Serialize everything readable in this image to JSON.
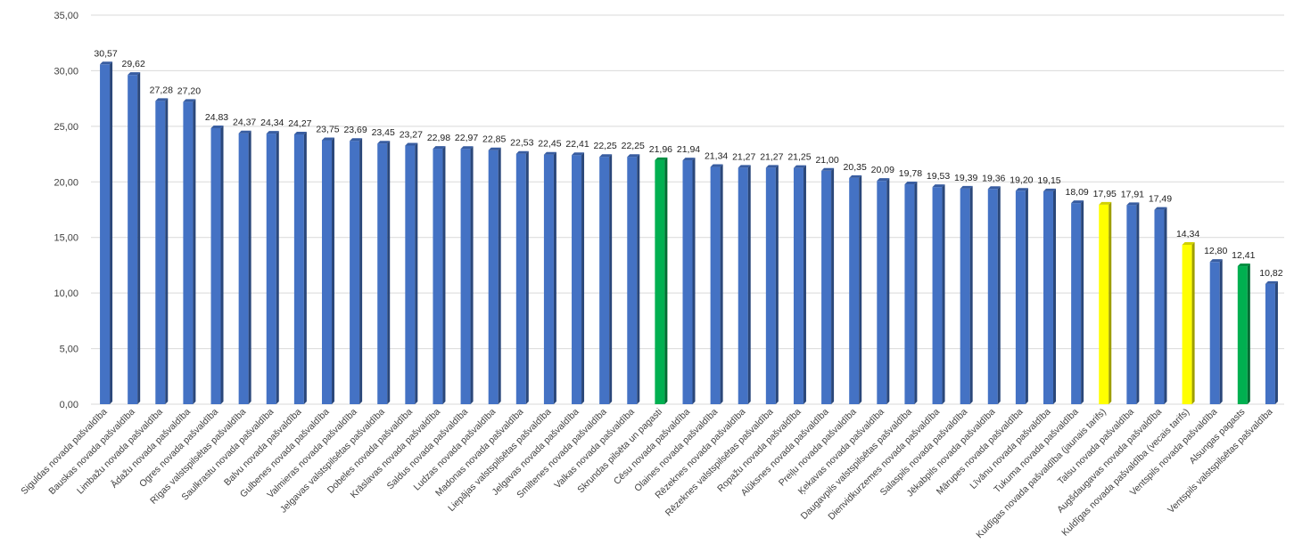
{
  "chart_data": {
    "type": "bar",
    "title": "",
    "xlabel": "",
    "ylabel": "",
    "ylim": [
      0,
      35
    ],
    "yticks": [
      "0,00",
      "5,00",
      "10,00",
      "15,00",
      "20,00",
      "25,00",
      "30,00",
      "35,00"
    ],
    "grid": true,
    "legend": "none",
    "colors": {
      "default": "#4472c4",
      "green": "#00b050",
      "yellow": "#ffff00"
    },
    "categories": [
      "Siguldas novada pašvaldība",
      "Bauskas novada pašvaldība",
      "Limbažu novada pašvaldība",
      "Ādažu novada pašvaldība",
      "Ogres novada pašvaldība",
      "Rīgas valstspilsētas pašvaldība",
      "Saulkrastu novada pašvaldība",
      "Balvu novada pašvaldība",
      "Gulbenes novada pašvaldība",
      "Valmieras novada pašvaldība",
      "Jelgavas valstspilsētas pašvaldība",
      "Dobeles novada pašvaldība",
      "Krāslavas novada pašvaldība",
      "Saldus novada pašvaldība",
      "Ludzas novada pašvaldība",
      "Madonas novada pašvaldība",
      "Liepājas valstspilsētas pašvaldība",
      "Jelgavas novada pašvaldība",
      "Smiltenes novada pašvaldība",
      "Valkas novada pašvaldība",
      "Skrundas pilsēta un pagasti",
      "Cēsu novada pašvaldība",
      "Olaines novada pašvaldība",
      "Rēzeknes novada pašvaldība",
      "Rēzeknes valstspilsētas pašvaldība",
      "Ropažu novada pašvaldība",
      "Alūksnes novada pašvaldība",
      "Preiļu novada pašvaldība",
      "Ķekavas novada pašvaldība",
      "Daugavpils valstspilsētas pašvaldība",
      "Dienvidkurzemes novada pašvaldība",
      "Salaspils novada pašvaldība",
      "Jēkabpils novada pašvaldība",
      "Mārupes novada pašvaldība",
      "Līvānu novada pašvaldība",
      "Tukuma novada pašvaldība",
      "Kuldīgas novada pašvaldība (jaunais tarifs)",
      "Talsu novada pašvaldība",
      "Augšdaugavas novada pašvaldība",
      "Kuldīgas novada pašvaldība (vecais tarifs)",
      "Ventspils novada pašvaldība",
      "Alsungas pagasts",
      "Ventspils valstspilsētas pašvaldība"
    ],
    "values": [
      30.57,
      29.62,
      27.28,
      27.2,
      24.83,
      24.37,
      24.34,
      24.27,
      23.75,
      23.69,
      23.45,
      23.27,
      22.98,
      22.97,
      22.85,
      22.53,
      22.45,
      22.41,
      22.25,
      22.25,
      21.96,
      21.94,
      21.34,
      21.27,
      21.27,
      21.25,
      21.0,
      20.35,
      20.09,
      19.78,
      19.53,
      19.39,
      19.36,
      19.2,
      19.15,
      18.09,
      17.95,
      17.91,
      17.49,
      14.34,
      12.8,
      12.41,
      10.82
    ],
    "data_labels": [
      "30,57",
      "29,62",
      "27,28",
      "27,20",
      "24,83",
      "24,37",
      "24,34",
      "24,27",
      "23,75",
      "23,69",
      "23,45",
      "23,27",
      "22,98",
      "22,97",
      "22,85",
      "22,53",
      "22,45",
      "22,41",
      "22,25",
      "22,25",
      "21,96",
      "21,94",
      "21,34",
      "21,27",
      "21,27",
      "21,25",
      "21,00",
      "20,35",
      "20,09",
      "19,78",
      "19,53",
      "19,39",
      "19,36",
      "19,20",
      "19,15",
      "18,09",
      "17,95",
      "17,91",
      "17,49",
      "14,34",
      "12,80",
      "12,41",
      "10,82"
    ],
    "bar_colors": [
      "default",
      "default",
      "default",
      "default",
      "default",
      "default",
      "default",
      "default",
      "default",
      "default",
      "default",
      "default",
      "default",
      "default",
      "default",
      "default",
      "default",
      "default",
      "default",
      "default",
      "green",
      "default",
      "default",
      "default",
      "default",
      "default",
      "default",
      "default",
      "default",
      "default",
      "default",
      "default",
      "default",
      "default",
      "default",
      "default",
      "yellow",
      "default",
      "default",
      "yellow",
      "default",
      "green",
      "default"
    ]
  }
}
